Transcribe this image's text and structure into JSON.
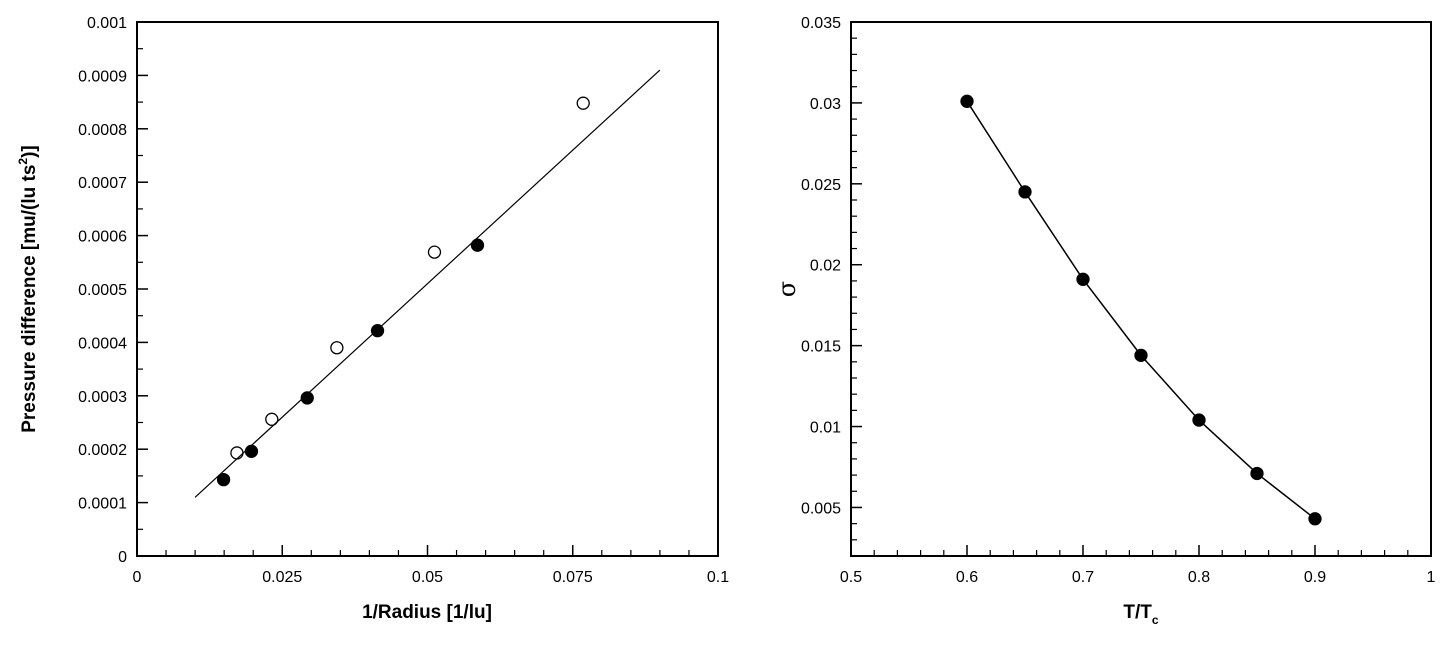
{
  "chart_data": [
    {
      "type": "scatter",
      "title": "",
      "xlabel": "1/Radius [1/lu]",
      "ylabel_main": "Pressure difference [mu/(lu ts",
      "ylabel_sup": "2",
      "ylabel_end": ")]",
      "xlim": [
        0,
        0.1
      ],
      "ylim": [
        0,
        0.001
      ],
      "xticks": [
        0,
        0.025,
        0.05,
        0.075,
        0.1
      ],
      "xtick_labels": [
        "0",
        "0.025",
        "0.05",
        "0.075",
        "0.1"
      ],
      "yticks": [
        0,
        0.0001,
        0.0002,
        0.0003,
        0.0004,
        0.0005,
        0.0006,
        0.0007,
        0.0008,
        0.0009,
        0.001
      ],
      "ytick_labels": [
        "0",
        "0.0001",
        "0.0002",
        "0.0003",
        "0.0004",
        "0.0005",
        "0.0006",
        "0.0007",
        "0.0008",
        "0.0009",
        "0.001"
      ],
      "grid": false,
      "series": [
        {
          "marker": "filled-circle",
          "x": [
            0.0149,
            0.0197,
            0.0293,
            0.0414,
            0.0586
          ],
          "y": [
            0.000143,
            0.000196,
            0.000296,
            0.000422,
            0.000582
          ]
        },
        {
          "marker": "open-circle",
          "x": [
            0.0172,
            0.0232,
            0.0344,
            0.0512,
            0.0768
          ],
          "y": [
            0.000193,
            0.000256,
            0.00039,
            0.000569,
            0.000848
          ]
        },
        {
          "marker": "line",
          "x": [
            0.01,
            0.09
          ],
          "y": [
            0.00011,
            0.00091
          ]
        }
      ]
    },
    {
      "type": "line",
      "title": "",
      "xlabel_main": "T/T",
      "xlabel_sub": "c",
      "ylabel": "σ",
      "xlim": [
        0.5,
        1
      ],
      "ylim": [
        0.002,
        0.035
      ],
      "xticks": [
        0.5,
        0.6,
        0.7,
        0.8,
        0.9,
        1
      ],
      "xtick_labels": [
        "0.5",
        "0.6",
        "0.7",
        "0.8",
        "0.9",
        "1"
      ],
      "yticks": [
        0.005,
        0.01,
        0.015,
        0.02,
        0.025,
        0.03,
        0.035
      ],
      "ytick_labels": [
        "0.005",
        "0.01",
        "0.015",
        "0.02",
        "0.025",
        "0.03",
        "0.035"
      ],
      "grid": false,
      "series": [
        {
          "marker": "filled-circle-line",
          "x": [
            0.6,
            0.65,
            0.7,
            0.75,
            0.8,
            0.85,
            0.9
          ],
          "y": [
            0.0301,
            0.0245,
            0.0191,
            0.0144,
            0.0104,
            0.0071,
            0.0043
          ]
        }
      ]
    }
  ]
}
